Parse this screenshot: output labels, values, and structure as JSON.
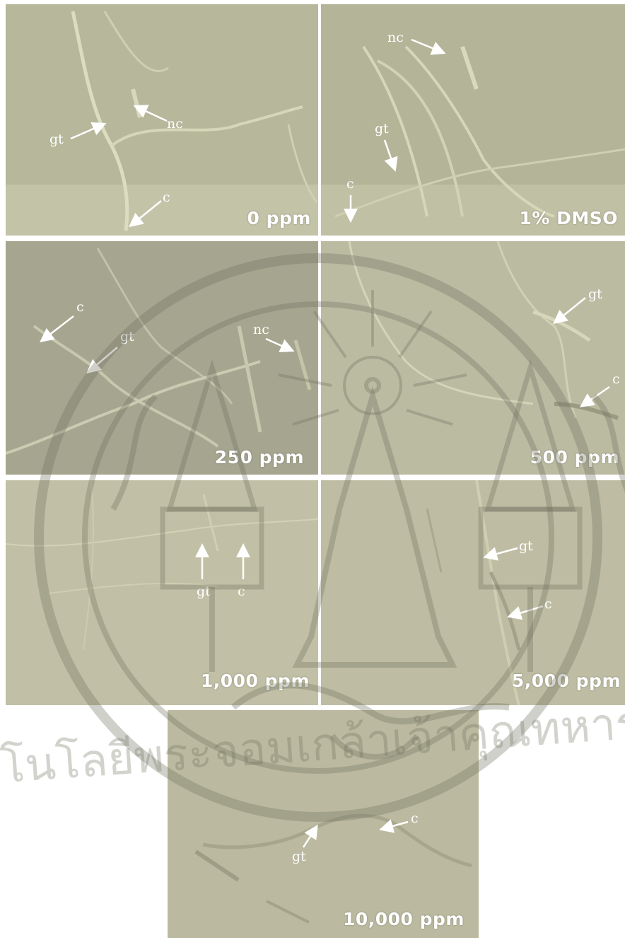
{
  "panels": [
    {
      "concentration": "0 ppm",
      "labels": [
        "gt",
        "nc",
        "c"
      ]
    },
    {
      "concentration": "1% DMSO",
      "labels": [
        "nc",
        "gt",
        "c"
      ]
    },
    {
      "concentration": "250 ppm",
      "labels": [
        "c",
        "gt",
        "nc"
      ]
    },
    {
      "concentration": "500 ppm",
      "labels": [
        "gt",
        "c"
      ]
    },
    {
      "concentration": "1,000 ppm",
      "labels": [
        "gt",
        "c"
      ]
    },
    {
      "concentration": "5,000 ppm",
      "labels": [
        "gt",
        "c"
      ]
    },
    {
      "concentration": "10,000 ppm",
      "labels": [
        "gt",
        "c"
      ]
    }
  ],
  "watermark": {
    "text": "สถาบันเทคโนโลยีพระจอมเกล้าเจ้าคุณทหารลาดกระบัง",
    "visible": true
  },
  "colors": {
    "background": "#b9b89a",
    "hypha": "#d8d6b8",
    "label": "#ffffff"
  }
}
